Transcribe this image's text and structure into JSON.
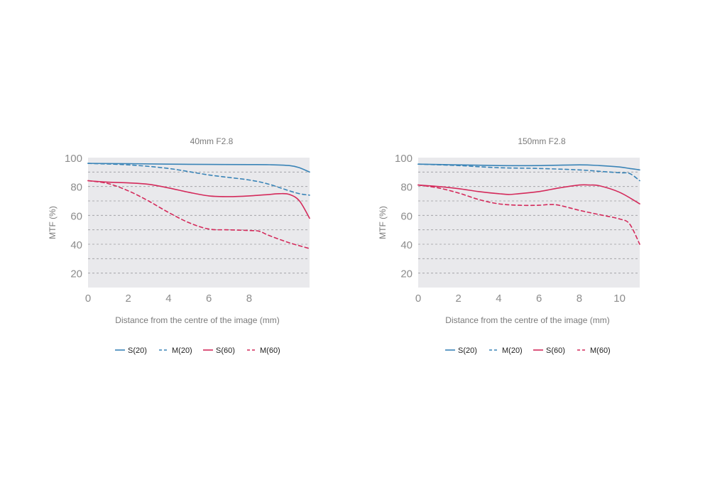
{
  "colors": {
    "s20": "#3a84b7",
    "m20": "#3a84b7",
    "s60": "#d42a5b",
    "m60": "#d42a5b",
    "plot_bg": "#e9e9ec",
    "grid": "#9a9a9e",
    "tick_text": "#8c8c8c",
    "label_text": "#7a7a7a",
    "legend_text": "#222222"
  },
  "chart_data": [
    {
      "type": "line",
      "title": "40mm F2.8",
      "xlabel": "Distance from the centre of the image (mm)",
      "ylabel": "MTF (%)",
      "xlim": [
        0,
        11
      ],
      "ylim": [
        10,
        100
      ],
      "xticks": [
        0,
        2,
        4,
        6,
        8
      ],
      "yticks": [
        20,
        40,
        60,
        80,
        100
      ],
      "grid": "horizontal dashed",
      "legend_position": "bottom",
      "series": [
        {
          "name": "S(20)",
          "style": "solid",
          "color": "#3a84b7",
          "x": [
            0,
            2,
            4,
            6,
            8,
            9,
            10,
            10.5,
            11
          ],
          "y": [
            96,
            95.8,
            95.5,
            95.3,
            95.2,
            95.1,
            94.5,
            93,
            90
          ]
        },
        {
          "name": "M(20)",
          "style": "dashed",
          "color": "#3a84b7",
          "x": [
            0,
            2,
            4,
            6,
            8,
            9,
            10,
            10.5,
            11
          ],
          "y": [
            96,
            95,
            92.5,
            88,
            84.5,
            81.5,
            77,
            75,
            74
          ]
        },
        {
          "name": "S(60)",
          "style": "solid",
          "color": "#d42a5b",
          "x": [
            0,
            1,
            2,
            3,
            4,
            5,
            6,
            7,
            8,
            9,
            9.5,
            10,
            10.5,
            11
          ],
          "y": [
            84,
            83,
            82.5,
            81.5,
            79,
            76,
            73.5,
            73,
            73.5,
            74.5,
            75,
            74.5,
            70,
            58
          ]
        },
        {
          "name": "M(60)",
          "style": "dashed",
          "color": "#d42a5b",
          "x": [
            0,
            1,
            2,
            3,
            4,
            5,
            6,
            7,
            8,
            8.5,
            9,
            10,
            11
          ],
          "y": [
            84,
            82,
            77,
            70,
            62,
            55,
            50.5,
            50,
            49.5,
            49,
            46,
            41,
            37
          ]
        }
      ]
    },
    {
      "type": "line",
      "title": "150mm F2.8",
      "xlabel": "Distance from the centre of the image (mm)",
      "ylabel": "MTF (%)",
      "xlim": [
        0,
        11
      ],
      "ylim": [
        10,
        100
      ],
      "xticks": [
        0,
        2,
        4,
        6,
        8,
        10
      ],
      "yticks": [
        20,
        40,
        60,
        80,
        100
      ],
      "grid": "horizontal dashed",
      "legend_position": "bottom",
      "series": [
        {
          "name": "S(20)",
          "style": "solid",
          "color": "#3a84b7",
          "x": [
            0,
            2,
            4,
            6,
            8,
            9,
            10,
            10.5,
            11
          ],
          "y": [
            95.5,
            95,
            94.5,
            94.5,
            95,
            94.5,
            93.5,
            92.5,
            91.5
          ]
        },
        {
          "name": "M(20)",
          "style": "dashed",
          "color": "#3a84b7",
          "x": [
            0,
            2,
            4,
            6,
            8,
            9,
            10,
            10.5,
            11
          ],
          "y": [
            95.5,
            94.5,
            93,
            92.5,
            91.5,
            90.5,
            89.5,
            89,
            84
          ]
        },
        {
          "name": "S(60)",
          "style": "solid",
          "color": "#d42a5b",
          "x": [
            0,
            1,
            2,
            3,
            4,
            4.5,
            5,
            6,
            7,
            8,
            8.5,
            9,
            10,
            11
          ],
          "y": [
            81,
            80,
            78.5,
            76.5,
            75,
            74.5,
            75,
            76.5,
            79,
            81,
            81,
            80.5,
            76,
            68
          ]
        },
        {
          "name": "M(60)",
          "style": "dashed",
          "color": "#d42a5b",
          "x": [
            0,
            1,
            2,
            3,
            4,
            5,
            6,
            6.5,
            7,
            8,
            9,
            10,
            10.5,
            11
          ],
          "y": [
            81,
            79,
            75.5,
            71,
            68,
            67,
            67,
            67.5,
            67,
            63.5,
            60.5,
            57.5,
            54,
            40
          ]
        }
      ]
    }
  ]
}
